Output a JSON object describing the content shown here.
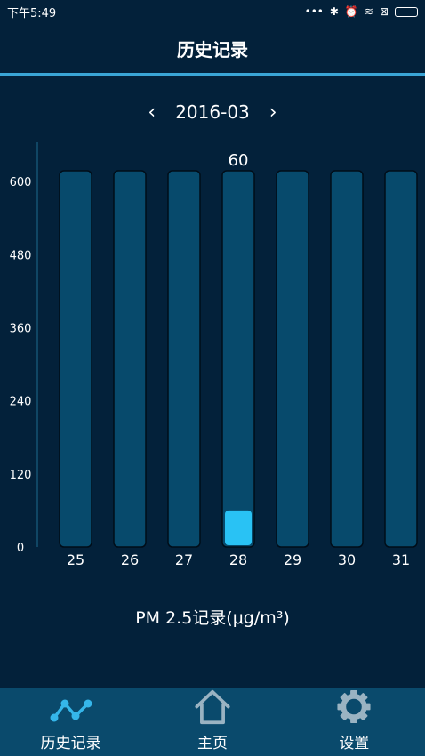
{
  "status_bar": {
    "time": "下午5:49",
    "dots": "•••",
    "bluetooth": "✱",
    "alarm": "⏰",
    "wifi": "≋",
    "sim": "⊠"
  },
  "header": {
    "title": "历史记录"
  },
  "month_nav": {
    "prev": "‹",
    "month": "2016-03",
    "next": "›"
  },
  "chart_data": {
    "type": "bar",
    "categories": [
      "25",
      "26",
      "27",
      "28",
      "29",
      "30",
      "31"
    ],
    "values": [
      null,
      null,
      null,
      60,
      null,
      null,
      null
    ],
    "y_ticks": [
      0,
      120,
      240,
      360,
      480,
      600
    ],
    "ylim": [
      0,
      650
    ],
    "data_labels": [
      {
        "category": "28",
        "text": "60"
      }
    ],
    "caption": "PM 2.5记录(μg/m³)",
    "colors": {
      "track": "#074a6c",
      "fill": "#29c2f4",
      "axis": "#1d6a8e"
    }
  },
  "bottom_nav": {
    "tabs": [
      {
        "label": "历史记录",
        "icon": "chart-line-icon"
      },
      {
        "label": "主页",
        "icon": "home-icon"
      },
      {
        "label": "设置",
        "icon": "gear-icon"
      }
    ]
  }
}
